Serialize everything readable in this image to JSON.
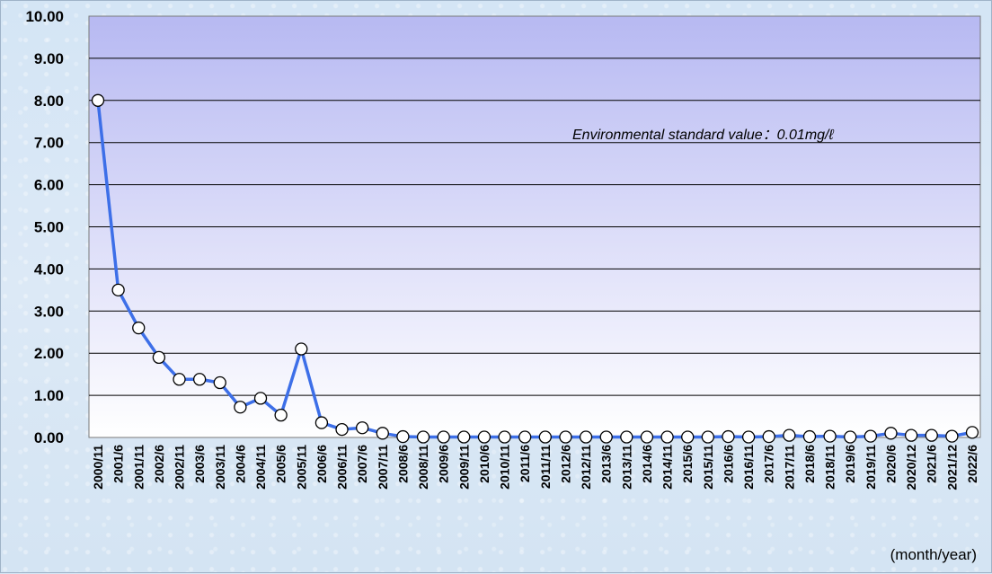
{
  "chart_data": {
    "type": "line",
    "title": "",
    "xlabel": "",
    "ylabel": "",
    "ylim": [
      0,
      10
    ],
    "y_ticks": [
      "0.00",
      "1.00",
      "2.00",
      "3.00",
      "4.00",
      "5.00",
      "6.00",
      "7.00",
      "8.00",
      "9.00",
      "10.00"
    ],
    "grid": true,
    "annotation": "Environmental standard value：0.01mg/ℓ",
    "unit_label": "(month/year)",
    "line_color": "#3d6fe8",
    "marker_fill": "#ffffff",
    "categories": [
      "2000/11",
      "2001/6",
      "2001/11",
      "2002/6",
      "2002/11",
      "2003/6",
      "2003/11",
      "2004/6",
      "2004/11",
      "2005/6",
      "2005/11",
      "2006/6",
      "2006/11",
      "2007/6",
      "2007/11",
      "2008/6",
      "2008/11",
      "2009/6",
      "2009/11",
      "2010/6",
      "2010/11",
      "2011/6",
      "2011/11",
      "2012/6",
      "2012/11",
      "2013/6",
      "2013/11",
      "2014/6",
      "2014/11",
      "2015/6",
      "2015/11",
      "2016/6",
      "2016/11",
      "2017/6",
      "2017/11",
      "2018/6",
      "2018/11",
      "2019/6",
      "2019/11",
      "2020/6",
      "2020/12",
      "2021/6",
      "2021/12",
      "2022/6"
    ],
    "x_tick_labels": [
      "2000/11",
      "2001/6",
      "2001/11",
      "2002/6",
      "2002/11",
      "2003/6",
      "2003/11",
      "2004/6",
      "2004/11",
      "2005/6",
      "2005/11",
      "2006/6",
      "2006/11",
      "2007/6",
      "2007/11",
      "2008/6",
      "2008/11",
      "2009/6",
      "2009/11",
      "2010/6",
      "2010/11",
      "2011/6",
      "2011/11",
      "2012/6",
      "2012/11",
      "2013/6",
      "2013/11",
      "2014/6",
      "2014/11",
      "2015/6",
      "2015/11",
      "2016/6",
      "2016/11",
      "2017/6",
      "2017/11",
      "2018/6",
      "2018/11",
      "2019/6",
      "2019/11",
      "2020/6",
      "2020/12",
      "2021/6",
      "2021/12",
      "2022/6"
    ],
    "values": [
      8.0,
      3.5,
      2.6,
      1.9,
      1.38,
      1.38,
      1.3,
      0.72,
      0.93,
      0.53,
      2.1,
      0.35,
      0.19,
      0.23,
      0.1,
      0.02,
      0.01,
      0.01,
      0.01,
      0.01,
      0.01,
      0.01,
      0.01,
      0.01,
      0.01,
      0.01,
      0.01,
      0.01,
      0.01,
      0.01,
      0.01,
      0.02,
      0.01,
      0.02,
      0.05,
      0.02,
      0.03,
      0.01,
      0.03,
      0.1,
      0.05,
      0.05,
      0.03,
      0.12
    ]
  }
}
